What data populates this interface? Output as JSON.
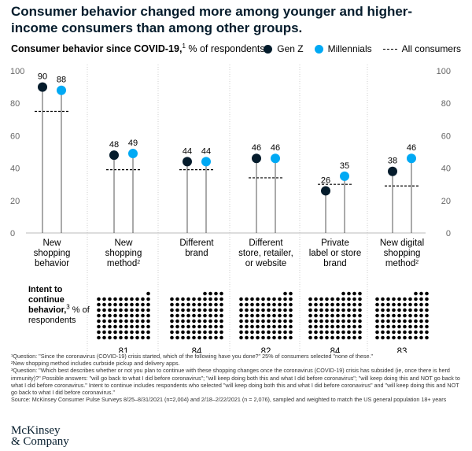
{
  "title": "Consumer behavior changed more among younger and higher-income consumers than among other groups.",
  "subtitle_bold": "Consumer behavior since COVID-19,",
  "subtitle_sup": "1",
  "subtitle_rest": " % of respondents",
  "legend": {
    "genz": "Gen Z",
    "millennials": "Millennials",
    "all": "All consumers"
  },
  "colors": {
    "genz": "#051c2c",
    "millennials": "#00a9f4",
    "line": "#000000"
  },
  "intent": {
    "label_bold": "Intent to continue behavior,",
    "label_sup": "3",
    "label_rest": " % of respondents"
  },
  "chart_data": {
    "type": "lollipop",
    "ylim": [
      0,
      100
    ],
    "yticks": [
      0,
      20,
      40,
      60,
      80,
      100
    ],
    "categories": [
      {
        "lines": [
          "New",
          "shopping",
          "behavior"
        ],
        "sup": ""
      },
      {
        "lines": [
          "New",
          "shopping",
          "method"
        ],
        "sup": "2"
      },
      {
        "lines": [
          "Different",
          "brand"
        ],
        "sup": ""
      },
      {
        "lines": [
          "Different",
          "store, retailer,",
          "or website"
        ],
        "sup": ""
      },
      {
        "lines": [
          "Private",
          "label or store",
          "brand"
        ],
        "sup": ""
      },
      {
        "lines": [
          "New digital",
          "shopping",
          "method"
        ],
        "sup": "2"
      }
    ],
    "series": [
      {
        "name": "Gen Z",
        "values": [
          90,
          48,
          44,
          46,
          26,
          38
        ]
      },
      {
        "name": "Millennials",
        "values": [
          88,
          49,
          44,
          46,
          35,
          46
        ]
      }
    ],
    "all_consumers": [
      75,
      39,
      39,
      34,
      30,
      29
    ],
    "intent_to_continue": [
      81,
      84,
      82,
      84,
      83
    ]
  },
  "footnotes": [
    "¹Question: \"Since the coronavirus (COVID-19) crisis started, which of the following have you done?\" 25% of consumers selected \"none of these.\"",
    "²New shopping method includes curbside pickup and delivery apps.",
    "³Question: \"Which best describes whether or not you plan to continue with these shopping changes once the coronavirus (COVID-19) crisis has subsided (ie, once there is herd immunity)?\" Possible answers: \"will go back to what I did before coronavirus\"; \"will keep doing both this and what I did before coronavirus\"; \"will keep doing this and NOT go back to what I did before coronavirus.\" Intent to continue includes respondents who selected \"will keep doing both this and what I did before coronavirus\" and \"will keep doing this and NOT go back to what I did before coronavirus.\"",
    "Source: McKinsey Consumer Pulse Surveys 8/25–8/31/2021 (n=2,004) and 2/18–2/22/2021 (n = 2,076), sampled and weighted to match the US general population 18+ years"
  ],
  "logo": [
    "McKinsey",
    "& Company"
  ]
}
